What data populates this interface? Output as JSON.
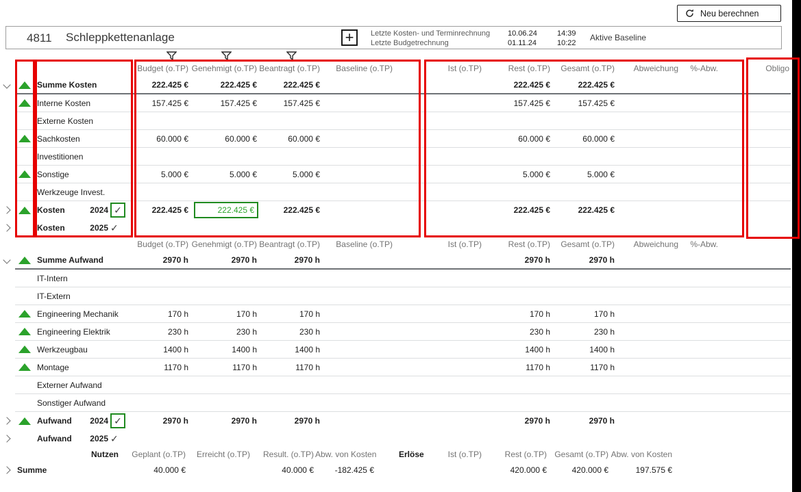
{
  "toolbar": {
    "recalculate_label": "Neu berechnen"
  },
  "project_header": {
    "id": "4811",
    "title": "Schleppkettenanlage",
    "calc_rows": [
      {
        "label": "Letzte Kosten- und Terminrechnung",
        "date": "10.06.24",
        "time": "14:39"
      },
      {
        "label": "Letzte Budgetrechnung",
        "date": "01.11.24",
        "time": "10:22"
      }
    ],
    "baseline_label": "Aktive Baseline"
  },
  "columns": {
    "cost_effort": [
      "Budget (o.TP)",
      "Genehmigt (o.TP)",
      "Beantragt (o.TP)",
      "Baseline (o.TP)",
      "Ist (o.TP)",
      "Rest (o.TP)",
      "Gesamt (o.TP)",
      "Abweichung",
      "%-Abw.",
      "Obligo"
    ],
    "filtered_columns": [
      "Budget (o.TP)",
      "Genehmigt (o.TP)",
      "Beantragt (o.TP)"
    ]
  },
  "cost_section": {
    "show_obligo_header": true,
    "rows": [
      {
        "expander": "down",
        "indicator": true,
        "bold": true,
        "label": "Summe Kosten",
        "sep": "dark",
        "cells": {
          "budget": "222.425 €",
          "genehmigt": "222.425 €",
          "beantragt": "222.425 €",
          "rest": "222.425 €",
          "gesamt": "222.425 €"
        }
      },
      {
        "indicator": true,
        "label": "Interne Kosten",
        "sep": "light",
        "cells": {
          "budget": "157.425 €",
          "genehmigt": "157.425 €",
          "beantragt": "157.425 €",
          "rest": "157.425 €",
          "gesamt": "157.425 €"
        }
      },
      {
        "label": "Externe Kosten",
        "sep": "light",
        "cells": {}
      },
      {
        "indicator": true,
        "label": "Sachkosten",
        "sep": "light",
        "cells": {
          "budget": "60.000 €",
          "genehmigt": "60.000 €",
          "beantragt": "60.000 €",
          "rest": "60.000 €",
          "gesamt": "60.000 €"
        }
      },
      {
        "label": "Investitionen",
        "sep": "light",
        "cells": {}
      },
      {
        "indicator": true,
        "label": "Sonstige",
        "sep": "light",
        "cells": {
          "budget": "5.000 €",
          "genehmigt": "5.000 €",
          "beantragt": "5.000 €",
          "rest": "5.000 €",
          "gesamt": "5.000 €"
        }
      },
      {
        "label": "Werkzeuge Invest.",
        "sep": "light",
        "cells": {}
      },
      {
        "expander": "right",
        "indicator": true,
        "bold": true,
        "label": "Kosten",
        "year": "2024",
        "check": "boxed",
        "selected": "genehmigt",
        "sep": "none",
        "cells": {
          "budget": "222.425 €",
          "genehmigt": "222.425 €",
          "beantragt": "222.425 €",
          "rest": "222.425 €",
          "gesamt": "222.425 €"
        }
      },
      {
        "expander": "right",
        "bold": true,
        "label": "Kosten",
        "year": "2025",
        "check": "plain",
        "sep": "none",
        "cells": {}
      }
    ]
  },
  "effort_section": {
    "show_obligo_header": false,
    "rows": [
      {
        "expander": "down",
        "indicator": true,
        "bold": true,
        "label": "Summe Aufwand",
        "sep": "dark",
        "cells": {
          "budget": "2970 h",
          "genehmigt": "2970 h",
          "beantragt": "2970 h",
          "rest": "2970 h",
          "gesamt": "2970 h"
        }
      },
      {
        "label": "IT-Intern",
        "sep": "light",
        "cells": {}
      },
      {
        "label": "IT-Extern",
        "sep": "light",
        "cells": {}
      },
      {
        "indicator": true,
        "label": "Engineering Mechanik",
        "sep": "light",
        "cells": {
          "budget": "170 h",
          "genehmigt": "170 h",
          "beantragt": "170 h",
          "rest": "170 h",
          "gesamt": "170 h"
        }
      },
      {
        "indicator": true,
        "label": "Engineering Elektrik",
        "sep": "light",
        "cells": {
          "budget": "230 h",
          "genehmigt": "230 h",
          "beantragt": "230 h",
          "rest": "230 h",
          "gesamt": "230 h"
        }
      },
      {
        "indicator": true,
        "label": "Werkzeugbau",
        "sep": "light",
        "cells": {
          "budget": "1400 h",
          "genehmigt": "1400 h",
          "beantragt": "1400 h",
          "rest": "1400 h",
          "gesamt": "1400 h"
        }
      },
      {
        "indicator": true,
        "label": "Montage",
        "sep": "light",
        "cells": {
          "budget": "1170 h",
          "genehmigt": "1170 h",
          "beantragt": "1170 h",
          "rest": "1170 h",
          "gesamt": "1170 h"
        }
      },
      {
        "label": "Externer Aufwand",
        "sep": "light",
        "cells": {}
      },
      {
        "label": "Sonstiger Aufwand",
        "sep": "light",
        "cells": {}
      },
      {
        "expander": "right",
        "indicator": true,
        "bold": true,
        "label": "Aufwand",
        "year": "2024",
        "check": "boxed",
        "sep": "none",
        "cells": {
          "budget": "2970 h",
          "genehmigt": "2970 h",
          "beantragt": "2970 h",
          "rest": "2970 h",
          "gesamt": "2970 h"
        }
      },
      {
        "expander": "right",
        "bold": true,
        "label": "Aufwand",
        "year": "2025",
        "check": "plain",
        "sep": "none",
        "cells": {}
      }
    ]
  },
  "benefit_section": {
    "nutzen_label": "Nutzen",
    "nutzen_columns": [
      "Geplant (o.TP)",
      "Erreicht (o.TP)",
      "Result. (o.TP)",
      "Abw. von Kosten"
    ],
    "erloese_label": "Erlöse",
    "erloese_columns": [
      "Ist (o.TP)",
      "Rest (o.TP)",
      "Gesamt (o.TP)",
      "Abw. von Kosten"
    ],
    "row": {
      "expander": "right",
      "bold_label": true,
      "label": "Summe",
      "cells": {
        "geplant": "40.000 €",
        "erreicht": "",
        "result": "40.000 €",
        "abw_kosten": "-182.425 €",
        "ist": "",
        "rest": "420.000 €",
        "gesamt": "420.000 €",
        "abw_kosten2": "197.575 €"
      }
    }
  },
  "colors": {
    "positive_indicator": "#2ba22b",
    "selection_green": "#1f8a1f",
    "annotation_red": "#e60000"
  }
}
